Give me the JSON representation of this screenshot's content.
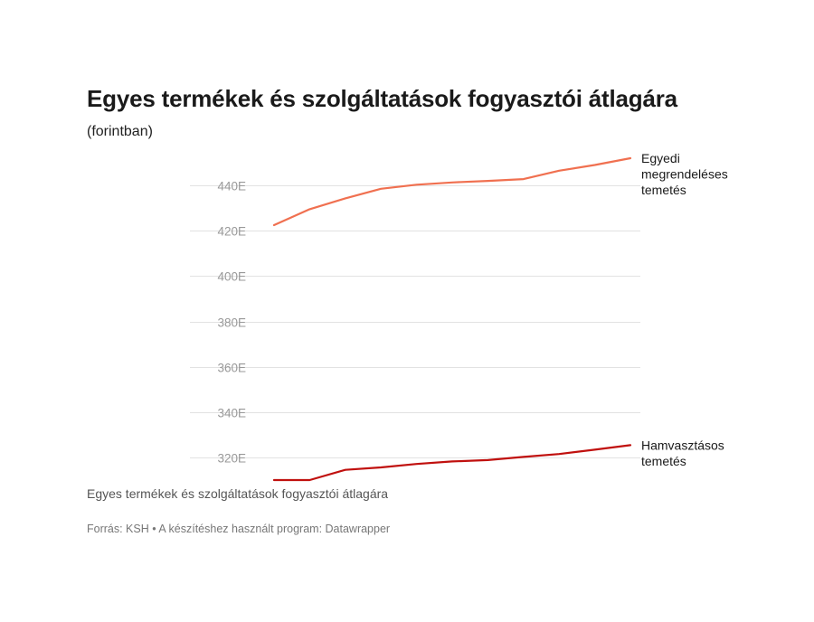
{
  "chart_data": {
    "type": "line",
    "title": "Egyes termékek és szolgáltatások fogyasztói átlagára",
    "subtitle": "(forintban)",
    "y_ticks": [
      {
        "value": 320000,
        "label": "320E"
      },
      {
        "value": 340000,
        "label": "340E"
      },
      {
        "value": 360000,
        "label": "360E"
      },
      {
        "value": 380000,
        "label": "380E"
      },
      {
        "value": 400000,
        "label": "400E"
      },
      {
        "value": 420000,
        "label": "420E"
      },
      {
        "value": 440000,
        "label": "440E"
      }
    ],
    "ylim": [
      310000,
      452000
    ],
    "grid": true,
    "x": [
      1,
      2,
      3,
      4,
      5,
      6,
      7,
      8,
      9,
      10,
      11
    ],
    "series": [
      {
        "name": "Egyedi megrendeléses temetés",
        "label_lines": [
          "Egyedi",
          "megrendeléses",
          "temetés"
        ],
        "color": "#f07050",
        "values": [
          422500,
          429500,
          434300,
          438500,
          440300,
          441300,
          442000,
          442800,
          446500,
          449000,
          452000
        ]
      },
      {
        "name": "Hamvasztásos temetés",
        "label_lines": [
          "Hamvasztásos",
          "temetés"
        ],
        "color": "#c0100e",
        "values": [
          310000,
          310000,
          314500,
          315600,
          317100,
          318200,
          318800,
          320200,
          321500,
          323400,
          325400
        ]
      }
    ]
  },
  "caption": "Egyes termékek és szolgáltatások fogyasztói átlagára",
  "source": "Forrás: KSH • A készítéshez használt program: Datawrapper"
}
